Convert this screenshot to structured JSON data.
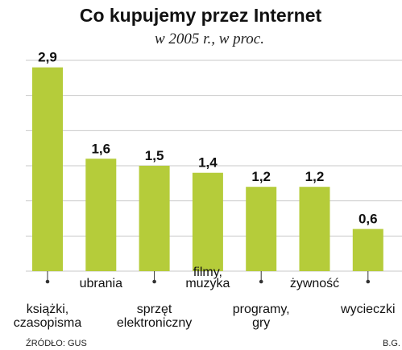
{
  "chart_data": {
    "type": "bar",
    "title": "Co kupujemy przez Internet",
    "subtitle": "w 2005 r., w proc.",
    "categories": [
      [
        "książki,",
        "czasopisma"
      ],
      [
        "ubrania"
      ],
      [
        "sprzęt",
        "elektroniczny"
      ],
      [
        "filmy,",
        "muzyka"
      ],
      [
        "programy,",
        "gry"
      ],
      [
        "żywność"
      ],
      [
        "wycieczki"
      ]
    ],
    "values": [
      2.9,
      1.6,
      1.5,
      1.4,
      1.2,
      1.2,
      0.6
    ],
    "value_labels": [
      "2,9",
      "1,6",
      "1,5",
      "1,4",
      "1,2",
      "1,2",
      "0,6"
    ],
    "label_positions": [
      "below",
      "above",
      "below",
      "above",
      "below",
      "above",
      "below"
    ],
    "ylim": [
      0,
      3
    ],
    "grid": true,
    "bar_color": "#b5cc3a",
    "grid_color": "#c9c9c9",
    "source": "ŹRÓDŁO: GUS",
    "author": "B.G."
  }
}
